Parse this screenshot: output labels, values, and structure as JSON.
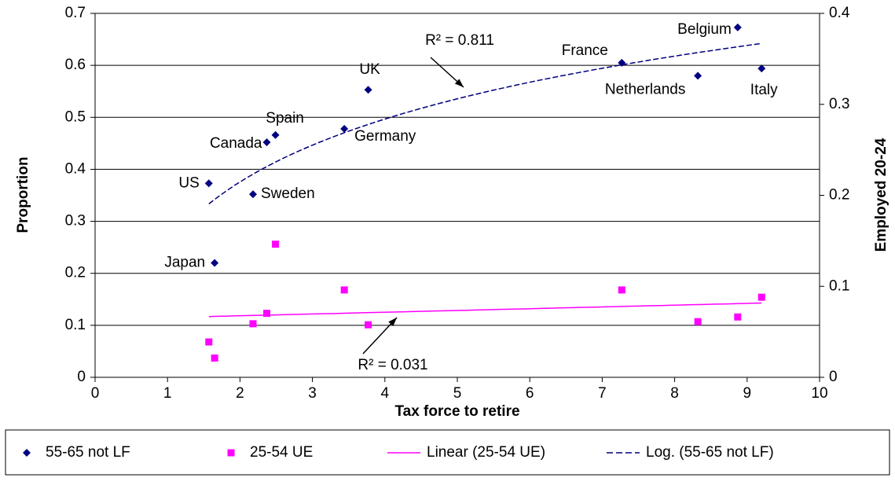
{
  "chart_data": {
    "type": "scatter",
    "xlabel": "Tax force to retire",
    "ylabel": "Proportion",
    "y2label": "Employed 20-24",
    "xlim": [
      0,
      10
    ],
    "xticks": [
      0,
      1,
      2,
      3,
      4,
      5,
      6,
      7,
      8,
      9,
      10
    ],
    "ylim": [
      0,
      0.7
    ],
    "yticks": [
      0,
      0.1,
      0.2,
      0.3,
      0.4,
      0.5,
      0.6,
      0.7
    ],
    "y2lim": [
      0,
      0.4
    ],
    "y2ticks": [
      0,
      0.1,
      0.2,
      0.3,
      0.4
    ],
    "grid": true,
    "legend": "bottom",
    "series": [
      {
        "name": "55-65 not LF",
        "color": "#000080",
        "marker": "diamond",
        "x": [
          1.57,
          1.65,
          2.18,
          2.37,
          2.49,
          3.44,
          3.77,
          7.27,
          8.32,
          8.87,
          9.2
        ],
        "values": [
          0.373,
          0.22,
          0.352,
          0.452,
          0.466,
          0.478,
          0.553,
          0.605,
          0.58,
          0.673,
          0.594
        ],
        "point_labels": [
          "US",
          "Japan",
          "Sweden",
          "Canada",
          "Spain",
          "Germany",
          "UK",
          "France",
          "Netherlands",
          "Belgium",
          "Italy"
        ]
      },
      {
        "name": "25-54 UE",
        "color": "#ff00ff",
        "marker": "square",
        "x": [
          1.57,
          1.65,
          2.18,
          2.37,
          2.49,
          3.44,
          3.77,
          7.27,
          8.32,
          8.87,
          9.2
        ],
        "values": [
          0.068,
          0.037,
          0.103,
          0.123,
          0.256,
          0.168,
          0.101,
          0.168,
          0.107,
          0.116,
          0.154
        ]
      }
    ],
    "trendlines": [
      {
        "name": "Linear (25-54 UE)",
        "kind": "linear",
        "color": "#ff00ff",
        "annotation": "R² = 0.031"
      },
      {
        "name": "Log. (55-65 not LF)",
        "kind": "log",
        "color": "#000080",
        "annotation": "R² = 0.811"
      }
    ]
  }
}
